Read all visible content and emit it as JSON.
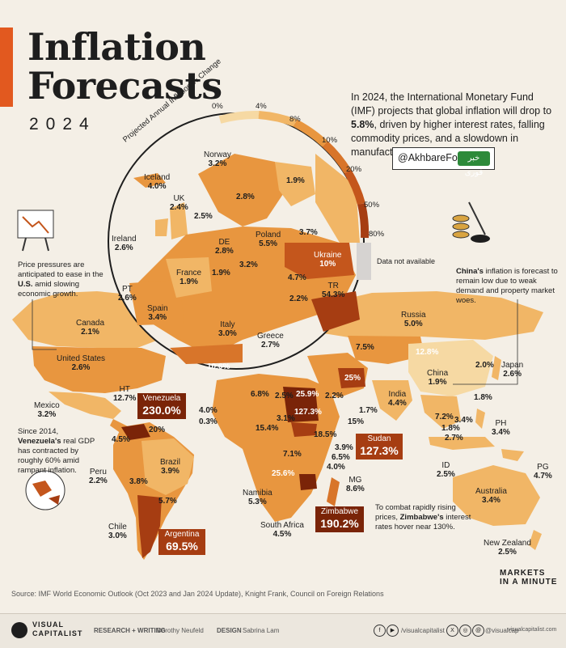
{
  "title_line1": "Inflation",
  "title_line2": "Forecasts",
  "year": "2024",
  "intro_parts": [
    "In 2024, the International Monetary Fund (IMF) projects that global inflation will drop to ",
    "5.8%",
    ", driven by higher interest rates, falling commodity prices, and a slowdown in manufacturing."
  ],
  "watermark": "@AkhbareFori",
  "watermark_logo": "خبر فوری",
  "legend": {
    "title": "Projected Annual Inflation % Change",
    "ticks": [
      "0%",
      "4%",
      "8%",
      "10%",
      "20%",
      "50%",
      "80%"
    ],
    "colors": [
      "#f6d9a3",
      "#f1b666",
      "#e8963f",
      "#d8752a",
      "#c4561c",
      "#a63d12",
      "#7a2408"
    ],
    "na_label": "Data not available",
    "na_color": "#d6d3d1"
  },
  "countries": [
    {
      "name": "Norway",
      "value": "3.2%"
    },
    {
      "name": "Iceland",
      "value": "4.0%"
    },
    {
      "name": "UK",
      "value": "2.4%"
    },
    {
      "name": "Ireland",
      "value": "2.6%"
    },
    {
      "name": "DE",
      "value": "2.8%"
    },
    {
      "name": "Poland",
      "value": "5.5%"
    },
    {
      "name": "Ukraine",
      "value": "10%"
    },
    {
      "name": "France",
      "value": "1.9%"
    },
    {
      "name": "PT",
      "value": "2.6%"
    },
    {
      "name": "Spain",
      "value": "3.4%"
    },
    {
      "name": "Italy",
      "value": "3.0%"
    },
    {
      "name": "Greece",
      "value": "2.7%"
    },
    {
      "name": "TR",
      "value": "54.3%"
    },
    {
      "name": "Russia",
      "value": "5.0%"
    },
    {
      "name": "Canada",
      "value": "2.1%"
    },
    {
      "name": "United States",
      "value": "2.6%"
    },
    {
      "name": "Mexico",
      "value": "3.2%"
    },
    {
      "name": "HT",
      "value": "12.7%"
    },
    {
      "name": "China",
      "value": "1.9%"
    },
    {
      "name": "Japan",
      "value": "2.6%"
    },
    {
      "name": "India",
      "value": "4.4%"
    },
    {
      "name": "PH",
      "value": "3.4%"
    },
    {
      "name": "ID",
      "value": "2.5%"
    },
    {
      "name": "PG",
      "value": "4.7%"
    },
    {
      "name": "Australia",
      "value": "3.4%"
    },
    {
      "name": "New Zealand",
      "value": "2.5%"
    },
    {
      "name": "Peru",
      "value": "2.2%"
    },
    {
      "name": "Brazil",
      "value": "3.9%"
    },
    {
      "name": "Chile",
      "value": "3.0%"
    },
    {
      "name": "Namibia",
      "value": "5.3%"
    },
    {
      "name": "South Africa",
      "value": "4.5%"
    },
    {
      "name": "MG",
      "value": "8.6%"
    }
  ],
  "unlabeled_values": [
    "1.9%",
    "2.8%",
    "2.5%",
    "3.7%",
    "1.9%",
    "3.2%",
    "4.7%",
    "2.2%",
    "10.6%",
    "7.5%",
    "12.8%",
    "25%",
    "2.0%",
    "2.2%",
    "1.8%",
    "1.7%",
    "15%",
    "7.2%",
    "1.8%",
    "3.4%",
    "2.7%",
    "6.8%",
    "2.5%",
    "25.9%",
    "127.3%",
    "4.0%",
    "0.3%",
    "3.1%",
    "15.4%",
    "18.5%",
    "7.1%",
    "3.9%",
    "6.5%",
    "4.0%",
    "25.6%",
    "20%",
    "4.5%",
    "3.8%",
    "5.7%"
  ],
  "highlights": [
    {
      "name": "Venezuela",
      "value": "230.0%"
    },
    {
      "name": "Sudan",
      "value": "127.3%"
    },
    {
      "name": "Zimbabwe",
      "value": "190.2%"
    },
    {
      "name": "Argentina",
      "value": "69.5%"
    }
  ],
  "callouts": {
    "us": [
      "Price pressures are anticipated to ease in the ",
      "U.S.",
      " amid slowing economic growth."
    ],
    "china": [
      "China's",
      " inflation is forecast to remain low due to weak demand and property market woes."
    ],
    "venezuela": [
      "Since 2014, ",
      "Venezuela's",
      " real GDP has contracted by roughly 60% amid rampant inflation."
    ],
    "zimbabwe": [
      "To combat rapidly rising prices, ",
      "Zimbabwe's",
      " interest rates hover near 130%."
    ]
  },
  "source": "Source: IMF World Economic Outlook (Oct 2023 and Jan 2024 Update), Knight Frank, Council on Foreign Relations",
  "branding": {
    "mim_lines": [
      "MARKETS",
      "IN A MINUTE"
    ],
    "vc_line1": "VISUAL",
    "vc_line2": "CAPITALIST",
    "research_label": "RESEARCH + WRITING",
    "research_name": "Dorothy Neufeld",
    "design_label": "DESIGN",
    "design_name": "Sabrina Lam",
    "social_1": "/visualcapitalist",
    "social_2": "@visualcap",
    "social_3": "visualcapitalist.com",
    "icons": [
      "facebook-icon",
      "youtube-icon",
      "x-icon",
      "instagram-icon",
      "threads-icon",
      "globe-icon"
    ]
  }
}
